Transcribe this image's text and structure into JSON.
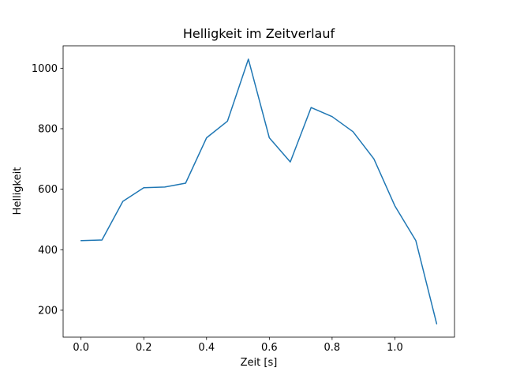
{
  "chart_data": {
    "type": "line",
    "title": "Helligkeit im Zeitverlauf",
    "xlabel": "Zeit [s]",
    "ylabel": "Helligkeit",
    "x": [
      0.0,
      0.0667,
      0.1333,
      0.2,
      0.2667,
      0.3333,
      0.4,
      0.4667,
      0.5333,
      0.6,
      0.6667,
      0.7333,
      0.8,
      0.8667,
      0.9333,
      1.0,
      1.0667,
      1.1333
    ],
    "y": [
      430,
      432,
      560,
      605,
      607,
      620,
      770,
      825,
      1030,
      770,
      690,
      870,
      840,
      790,
      700,
      545,
      430,
      155
    ],
    "xlim": [
      -0.057,
      1.19
    ],
    "ylim": [
      111,
      1074
    ],
    "xtick_values": [
      0.0,
      0.2,
      0.4,
      0.6,
      0.8,
      1.0
    ],
    "xtick_labels": [
      "0.0",
      "0.2",
      "0.4",
      "0.6",
      "0.8",
      "1.0"
    ],
    "ytick_values": [
      200,
      400,
      600,
      800,
      1000
    ],
    "ytick_labels": [
      "200",
      "400",
      "600",
      "800",
      "1000"
    ],
    "line_color": "#1f77b4",
    "axis_color": "#000000",
    "background": "#ffffff",
    "grid": false,
    "legend": null
  }
}
